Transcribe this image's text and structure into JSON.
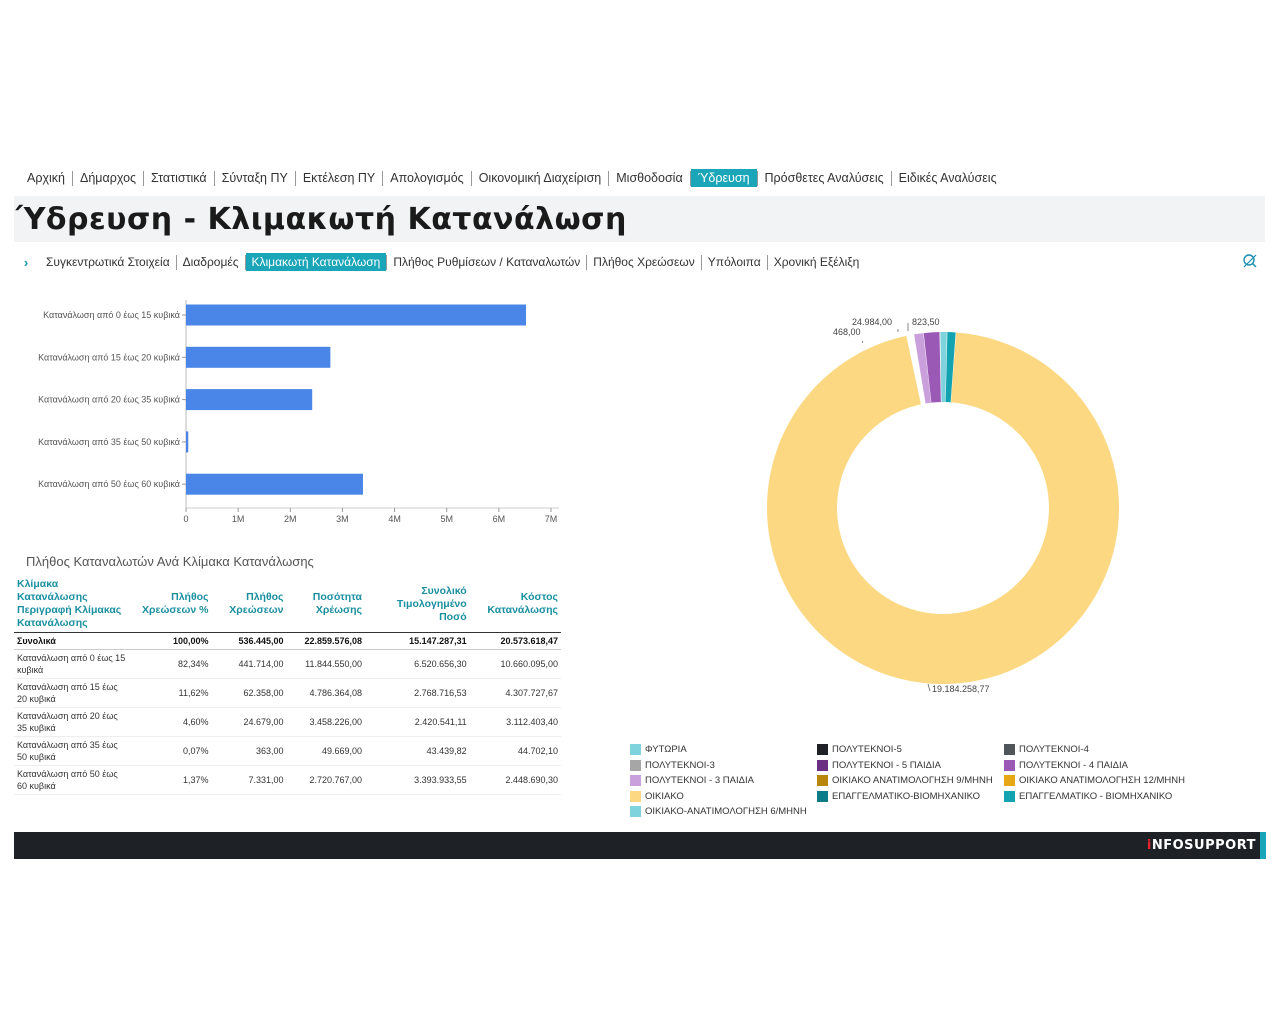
{
  "topnav": [
    "Αρχική",
    "Δήμαρχος",
    "Στατιστικά",
    "Σύνταξη ΠΥ",
    "Εκτέλεση ΠΥ",
    "Απολογισμός",
    "Οικονομική Διαχείριση",
    "Μισθοδοσία",
    "Ύδρευση",
    "Πρόσθετες Αναλύσεις",
    "Ειδικές Αναλύσεις"
  ],
  "topnav_active": 8,
  "page_title": "Ύδρευση - Κλιμακωτή Κατανάλωση",
  "subnav": [
    "Συγκεντρωτικά Στοιχεία",
    "Διαδρομές",
    "Κλιμακωτή Κατανάλωση",
    "Πλήθος Ρυθμίσεων / Καταναλωτών",
    "Πλήθος Χρεώσεων",
    "Υπόλοιπα",
    "Χρονική Εξέλιξη"
  ],
  "subnav_active": 2,
  "chart_data": [
    {
      "type": "bar",
      "orientation": "horizontal",
      "categories": [
        "Κατανάλωση από 0 έως 15 κυβικά",
        "Κατανάλωση από 15 έως 20 κυβικά",
        "Κατανάλωση από 20 έως 35 κυβικά",
        "Κατανάλωση από 35 έως 50 κυβικά",
        "Κατανάλωση από 50 έως 60 κυβικά"
      ],
      "values": [
        6520656.3,
        2768716.53,
        2420541.11,
        43439.82,
        3393933.55
      ],
      "xlim": [
        0,
        7000000
      ],
      "xticks": [
        0,
        1000000,
        2000000,
        3000000,
        4000000,
        5000000,
        6000000,
        7000000
      ],
      "xtick_labels": [
        "0",
        "1M",
        "2M",
        "3M",
        "4M",
        "5M",
        "6M",
        "7M"
      ],
      "color": "#4a86e8"
    },
    {
      "type": "pie",
      "donut": true,
      "slices": [
        {
          "name": "ΦΥΤΩΡΙΑ",
          "value": 0,
          "color": "#7fd3dc"
        },
        {
          "name": "ΠΟΛΥΤΕΚΝΟΙ-5",
          "value": 0,
          "color": "#1e2226"
        },
        {
          "name": "ΠΟΛΥΤΕΚΝΟΙ-4",
          "value": 0,
          "color": "#4f5559"
        },
        {
          "name": "ΠΟΛΥΤΕΚΝΟΙ-3",
          "value": 0,
          "color": "#a6a6a6"
        },
        {
          "name": "ΠΟΛΥΤΕΚΝΟΙ - 5 ΠΑΙΔΙΑ",
          "value": 0,
          "color": "#6a2e82"
        },
        {
          "name": "ΠΟΛΥΤΕΚΝΟΙ - 4 ΠΑΙΔΙΑ",
          "value": 24984.0,
          "color": "#9b59b6"
        },
        {
          "name": "ΠΟΛΥΤΕΚΝΟΙ - 3 ΠΑΙΔΙΑ",
          "value": 468.0,
          "color": "#c9a0dc"
        },
        {
          "name": "ΟΙΚΙΑΚΟ ΑΝΑΤΙΜΟΛΟΓΗΣΗ 9/ΜΗΝΗ",
          "value": 0,
          "color": "#b8860b"
        },
        {
          "name": "ΟΙΚΙΑΚΟ ΑΝΑΤΙΜΟΛΟΓΗΣΗ 12/ΜΗΝΗ",
          "value": 0,
          "color": "#e6a817"
        },
        {
          "name": "ΟΙΚΙΑΚΟ",
          "value": 19184258.77,
          "color": "#fdd882"
        },
        {
          "name": "ΕΠΑΓΓΕΛΜΑΤΙΚΟ-ΒΙΟΜΗΧΑΝΙΚΟ",
          "value": 0,
          "color": "#0e7c86"
        },
        {
          "name": "ΕΠΑΓΓΕΛΜΑΤΙΚΟ - ΒΙΟΜΗΧΑΝΙΚΟ",
          "value": 823.5,
          "color": "#13a3b0"
        },
        {
          "name": "ΟΙΚΙΑΚΟ-ΑΝΑΤΙΜΟΛΟΓΗΣΗ 6/ΜΗΝΗ",
          "value": 0,
          "color": "#7fd3dc"
        }
      ],
      "data_labels": [
        "468,00",
        "24.984,00",
        "823,50",
        "19.184.258,77"
      ]
    }
  ],
  "table": {
    "title": "Πλήθος Καταναλωτών Ανά Κλίμακα Κατανάλωσης",
    "headers": [
      "Κλίμακα Κατανάλωσης Περιγραφή Κλίμακας Κατανάλωσης",
      "Πλήθος Χρεώσεων %",
      "Πλήθος Χρεώσεων",
      "Ποσότητα Χρέωσης",
      "Συνολικό Τιμολογημένο Ποσό",
      "Κόστος Κατανάλωσης"
    ],
    "total": [
      "Συνολικά",
      "100,00%",
      "536.445,00",
      "22.859.576,08",
      "15.147.287,31",
      "20.573.618,47"
    ],
    "rows": [
      [
        "Κατανάλωση από 0 έως 15 κυβικά",
        "82,34%",
        "441.714,00",
        "11.844.550,00",
        "6.520.656,30",
        "10.660.095,00"
      ],
      [
        "Κατανάλωση από 15 έως 20 κυβικά",
        "11,62%",
        "62.358,00",
        "4.786.364,08",
        "2.768.716,53",
        "4.307.727,67"
      ],
      [
        "Κατανάλωση από 20 έως 35 κυβικά",
        "4,60%",
        "24.679,00",
        "3.458.226,00",
        "2.420.541,11",
        "3.112.403,40"
      ],
      [
        "Κατανάλωση από 35 έως 50 κυβικά",
        "0,07%",
        "363,00",
        "49.669,00",
        "43.439,82",
        "44.702,10"
      ],
      [
        "Κατανάλωση από 50 έως 60 κυβικά",
        "1,37%",
        "7.331,00",
        "2.720.767,00",
        "3.393.933,55",
        "2.448.690,30"
      ]
    ]
  },
  "footer": {
    "brand_i": "i",
    "brand_rest": "NFOSUPPORT"
  },
  "icons": {
    "subnav_chevron": "›",
    "filter": "filter-off-icon"
  }
}
